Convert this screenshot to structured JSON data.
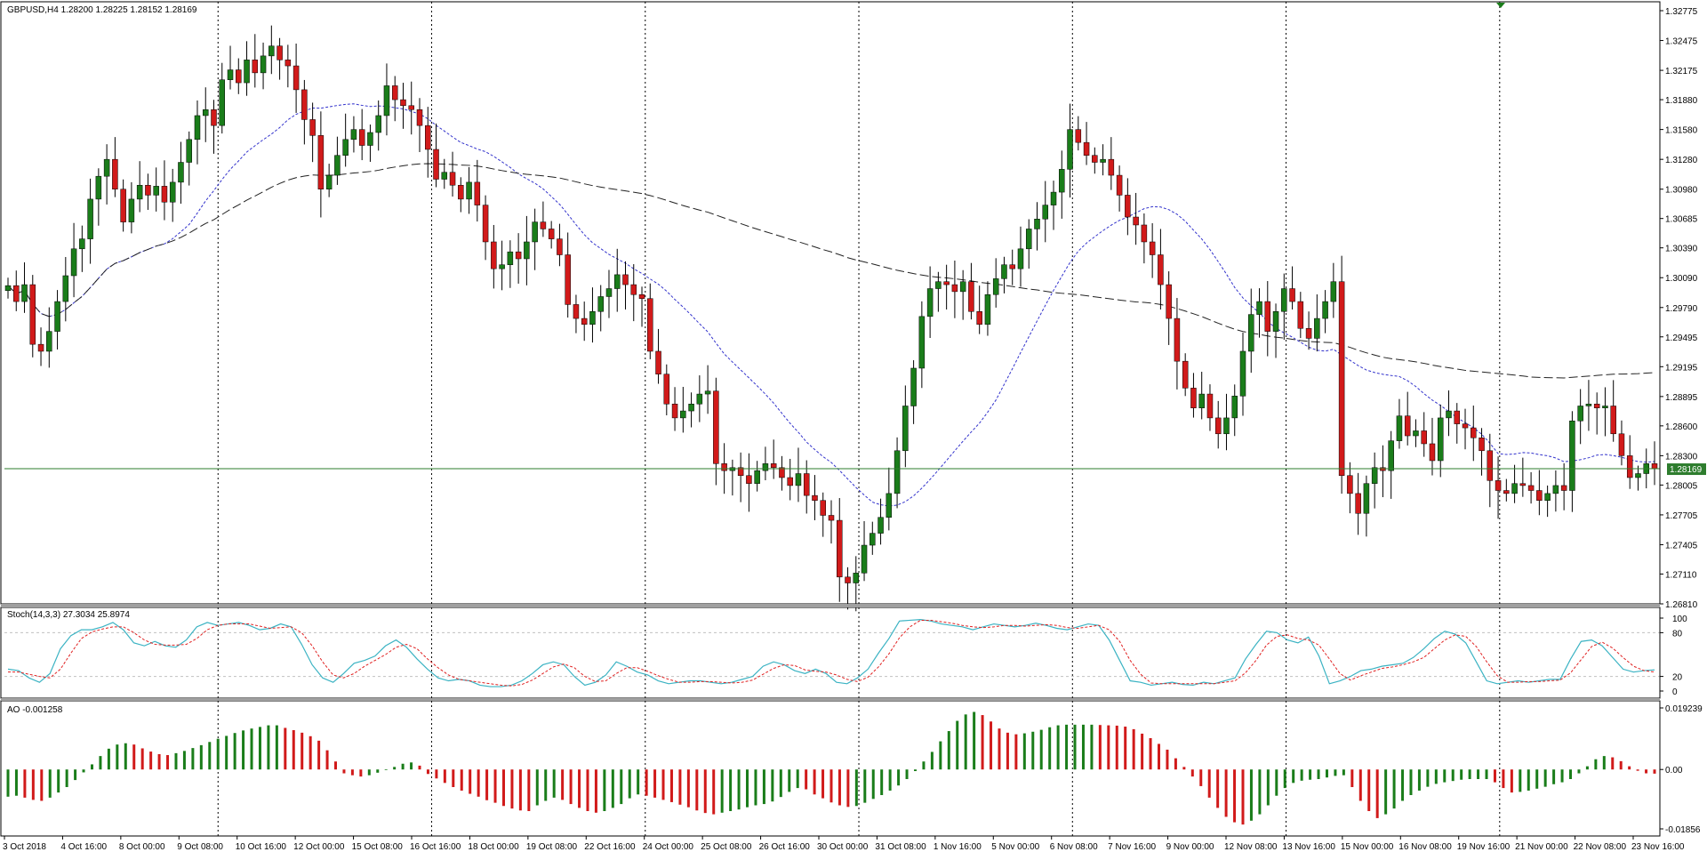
{
  "header": {
    "symbol_info": "GBPUSD,H4  1.28200 1.28225 1.28152 1.28169",
    "stoch_label": "Stoch(14,3,3) 27.3034 25.8974",
    "ao_label": "AO -0.001258",
    "current_price": "1.28169"
  },
  "colors": {
    "bull": "#1a7d1a",
    "bear": "#d11a1a",
    "ma_fast": "#3333cc",
    "ma_slow": "#222222",
    "price_line": "#2e7d2e",
    "stoch_main": "#3bb3c3",
    "stoch_signal": "#e02020"
  },
  "chart_data": [
    {
      "type": "candlestick",
      "ylim": [
        1.2681,
        1.32775
      ],
      "y_ticks": [
        "1.32775",
        "1.32475",
        "1.32175",
        "1.31880",
        "1.31580",
        "1.31280",
        "1.30980",
        "1.30685",
        "1.30390",
        "1.30090",
        "1.29790",
        "1.29495",
        "1.29195",
        "1.28895",
        "1.28600",
        "1.28300",
        "1.28005",
        "1.27705",
        "1.27405",
        "1.27110",
        "1.26810"
      ],
      "x_ticks": [
        "3 Oct 2018",
        "4 Oct 16:00",
        "8 Oct 00:00",
        "9 Oct 08:00",
        "10 Oct 16:00",
        "12 Oct 00:00",
        "15 Oct 08:00",
        "16 Oct 16:00",
        "18 Oct 00:00",
        "19 Oct 08:00",
        "22 Oct 16:00",
        "24 Oct 00:00",
        "25 Oct 08:00",
        "26 Oct 16:00",
        "30 Oct 00:00",
        "31 Oct 08:00",
        "1 Nov 16:00",
        "5 Nov 00:00",
        "6 Nov 08:00",
        "7 Nov 16:00",
        "9 Nov 00:00",
        "12 Nov 08:00",
        "13 Nov 16:00",
        "15 Nov 00:00",
        "16 Nov 08:00",
        "19 Nov 16:00",
        "21 Nov 00:00",
        "22 Nov 08:00",
        "23 Nov 16:00"
      ],
      "close_series": [
        1.3001,
        1.2985,
        1.3002,
        1.2942,
        1.2935,
        1.2955,
        1.2985,
        1.3011,
        1.3038,
        1.3048,
        1.3088,
        1.3111,
        1.3128,
        1.3098,
        1.3065,
        1.3088,
        1.3102,
        1.3092,
        1.3101,
        1.3085,
        1.3105,
        1.3125,
        1.3148,
        1.3172,
        1.3178,
        1.3162,
        1.3208,
        1.3218,
        1.3205,
        1.3228,
        1.3215,
        1.3232,
        1.3242,
        1.3228,
        1.3222,
        1.3198,
        1.3168,
        1.3152,
        1.3098,
        1.3112,
        1.3132,
        1.3148,
        1.3158,
        1.3142,
        1.3155,
        1.3172,
        1.3202,
        1.3188,
        1.3182,
        1.3178,
        1.3162,
        1.3138,
        1.3108,
        1.3115,
        1.3102,
        1.3088,
        1.3105,
        1.3082,
        1.3045,
        1.3018,
        1.3022,
        1.3035,
        1.3028,
        1.3045,
        1.3065,
        1.3058,
        1.3048,
        1.3032,
        1.2982,
        1.2968,
        1.2962,
        1.2975,
        1.299,
        1.2998,
        1.3012,
        1.3002,
        1.2992,
        1.2988,
        1.2935,
        1.2912,
        1.2882,
        1.2868,
        1.2875,
        1.2882,
        1.2892,
        1.2895,
        1.2822,
        1.2815,
        1.2818,
        1.281,
        1.2802,
        1.2815,
        1.2822,
        1.2818,
        1.2808,
        1.28,
        1.2812,
        1.279,
        1.2785,
        1.277,
        1.2765,
        1.2708,
        1.2702,
        1.2712,
        1.274,
        1.2752,
        1.2768,
        1.2792,
        1.2835,
        1.288,
        1.2918,
        1.297,
        1.2998,
        1.3005,
        1.3002,
        1.2995,
        1.3005,
        1.2975,
        1.2962,
        1.2992,
        1.3008,
        1.3022,
        1.3018,
        1.3038,
        1.3058,
        1.3068,
        1.3082,
        1.3095,
        1.3118,
        1.3158,
        1.3145,
        1.3132,
        1.3125,
        1.3128,
        1.3112,
        1.3092,
        1.307,
        1.3062,
        1.3045,
        1.3032,
        1.3002,
        1.2968,
        1.2925,
        1.2898,
        1.2878,
        1.2892,
        1.2868,
        1.2852,
        1.2868,
        1.289,
        1.2935,
        1.2972,
        1.2985,
        1.2955,
        1.2975,
        1.2998,
        1.2985,
        1.2958,
        1.2948,
        1.2968,
        1.2985,
        1.3005,
        1.281,
        1.2792,
        1.2772,
        1.2802,
        1.2818,
        1.2815,
        1.2845,
        1.287,
        1.285,
        1.2855,
        1.2842,
        1.2825,
        1.2868,
        1.2875,
        1.2862,
        1.2858,
        1.2848,
        1.2835,
        1.2805,
        1.2795,
        1.2792,
        1.2802,
        1.28,
        1.2795,
        1.2785,
        1.2792,
        1.28,
        1.2795,
        1.2865,
        1.288,
        1.2882,
        1.2878,
        1.288,
        1.2852,
        1.283,
        1.2808,
        1.2812,
        1.2822,
        1.2817
      ]
    },
    {
      "type": "line",
      "title": "Stoch(14,3,3)",
      "levels": [
        80,
        20
      ],
      "y_ticks": [
        "100",
        "80",
        "20",
        "0"
      ],
      "series": [
        {
          "name": "main",
          "values": [
            30,
            28,
            18,
            12,
            24,
            58,
            76,
            84,
            84,
            88,
            94,
            84,
            66,
            62,
            68,
            62,
            60,
            70,
            88,
            94,
            90,
            92,
            94,
            90,
            84,
            86,
            92,
            88,
            64,
            36,
            18,
            12,
            24,
            38,
            42,
            48,
            62,
            70,
            60,
            44,
            30,
            18,
            14,
            16,
            14,
            8,
            6,
            6,
            8,
            14,
            24,
            36,
            40,
            36,
            20,
            8,
            12,
            22,
            40,
            34,
            26,
            22,
            14,
            10,
            12,
            14,
            14,
            12,
            10,
            12,
            16,
            20,
            34,
            40,
            36,
            28,
            24,
            30,
            24,
            12,
            10,
            18,
            30,
            52,
            72,
            96,
            97,
            98,
            96,
            92,
            90,
            88,
            84,
            88,
            92,
            90,
            88,
            90,
            93,
            90,
            86,
            84,
            88,
            92,
            90,
            70,
            42,
            14,
            12,
            8,
            10,
            12,
            9,
            8,
            12,
            10,
            14,
            18,
            44,
            64,
            82,
            80,
            70,
            66,
            74,
            48,
            10,
            14,
            20,
            28,
            30,
            34,
            36,
            38,
            46,
            58,
            72,
            82,
            78,
            66,
            40,
            14,
            10,
            12,
            14,
            12,
            14,
            16,
            16,
            44,
            68,
            70,
            62,
            46,
            30,
            26,
            28,
            29
          ]
        },
        {
          "name": "signal",
          "values": [
            26,
            26,
            23,
            20,
            18,
            30,
            52,
            72,
            81,
            85,
            88,
            88,
            80,
            70,
            64,
            63,
            63,
            64,
            72,
            84,
            90,
            92,
            92,
            92,
            89,
            86,
            87,
            88,
            80,
            62,
            40,
            22,
            18,
            24,
            34,
            42,
            50,
            60,
            64,
            58,
            44,
            32,
            22,
            16,
            14,
            12,
            10,
            8,
            7,
            9,
            15,
            24,
            33,
            37,
            32,
            20,
            13,
            14,
            24,
            32,
            32,
            27,
            21,
            16,
            12,
            12,
            13,
            13,
            12,
            11,
            12,
            15,
            23,
            31,
            36,
            35,
            29,
            27,
            26,
            22,
            16,
            13,
            19,
            33,
            51,
            73,
            88,
            97,
            97,
            95,
            93,
            90,
            88,
            87,
            88,
            90,
            90,
            89,
            90,
            91,
            90,
            87,
            86,
            88,
            90,
            84,
            68,
            42,
            23,
            11,
            10,
            10,
            10,
            10,
            10,
            10,
            12,
            14,
            25,
            42,
            63,
            75,
            77,
            72,
            70,
            63,
            44,
            24,
            15,
            21,
            26,
            31,
            33,
            36,
            40,
            46,
            58,
            70,
            77,
            75,
            61,
            40,
            21,
            12,
            12,
            13,
            13,
            14,
            15,
            25,
            43,
            61,
            67,
            59,
            46,
            34,
            28,
            26
          ]
        }
      ]
    },
    {
      "type": "bar",
      "title": "AO",
      "ylim": [
        -0.01856,
        0.019239
      ],
      "y_ticks": [
        "0.019239",
        "0.00",
        "-0.01856"
      ],
      "values": [
        -0.0085,
        -0.0082,
        -0.0088,
        -0.0095,
        -0.0098,
        -0.0088,
        -0.0072,
        -0.0055,
        -0.0033,
        -0.0009,
        0.0016,
        0.0042,
        0.0065,
        0.0078,
        0.0082,
        0.0078,
        0.0066,
        0.0056,
        0.0048,
        0.0045,
        0.0051,
        0.0058,
        0.0067,
        0.0076,
        0.0086,
        0.0096,
        0.0105,
        0.0114,
        0.0122,
        0.0128,
        0.0133,
        0.0138,
        0.0138,
        0.013,
        0.0123,
        0.0115,
        0.0104,
        0.009,
        0.006,
        0.0025,
        -0.0012,
        -0.0018,
        -0.0022,
        -0.0018,
        -0.001,
        -0.0002,
        0.0008,
        0.0018,
        0.0022,
        0.0012,
        -0.0014,
        -0.0028,
        -0.0042,
        -0.0055,
        -0.0066,
        -0.0076,
        -0.0085,
        -0.0096,
        -0.0104,
        -0.0114,
        -0.0122,
        -0.0128,
        -0.013,
        -0.0112,
        -0.0098,
        -0.0088,
        -0.0095,
        -0.0108,
        -0.012,
        -0.013,
        -0.0135,
        -0.013,
        -0.012,
        -0.0108,
        -0.009,
        -0.0078,
        -0.0082,
        -0.0088,
        -0.0095,
        -0.0102,
        -0.011,
        -0.0118,
        -0.0128,
        -0.0136,
        -0.014,
        -0.0135,
        -0.013,
        -0.0125,
        -0.0118,
        -0.0112,
        -0.0108,
        -0.01,
        -0.0086,
        -0.007,
        -0.0058,
        -0.0062,
        -0.0078,
        -0.009,
        -0.0103,
        -0.0112,
        -0.0117,
        -0.0114,
        -0.0104,
        -0.0092,
        -0.008,
        -0.0066,
        -0.005,
        -0.003,
        -0.0005,
        0.0025,
        0.0055,
        0.0088,
        0.012,
        0.0152,
        0.0172,
        0.018,
        0.017,
        0.015,
        0.0128,
        0.0115,
        0.011,
        0.0113,
        0.0118,
        0.0124,
        0.0132,
        0.0138,
        0.014,
        0.014,
        0.014,
        0.014,
        0.0139,
        0.0138,
        0.0137,
        0.0134,
        0.0126,
        0.0112,
        0.0098,
        0.008,
        0.0062,
        0.0035,
        0.0008,
        -0.0022,
        -0.0052,
        -0.0088,
        -0.012,
        -0.0148,
        -0.0165,
        -0.0172,
        -0.016,
        -0.014,
        -0.0112,
        -0.0082,
        -0.0058,
        -0.0042,
        -0.0035,
        -0.0032,
        -0.003,
        -0.0025,
        -0.002,
        -0.0018,
        -0.0055,
        -0.0098,
        -0.013,
        -0.0152,
        -0.014,
        -0.0122,
        -0.0098,
        -0.008,
        -0.0066,
        -0.0054,
        -0.0045,
        -0.004,
        -0.0036,
        -0.0032,
        -0.003,
        -0.003,
        -0.003,
        -0.004,
        -0.0058,
        -0.0072,
        -0.007,
        -0.0066,
        -0.006,
        -0.0054,
        -0.0046,
        -0.004,
        -0.003,
        -0.0012,
        0.001,
        0.0032,
        0.0042,
        0.0038,
        0.0026,
        0.001,
        -0.0004,
        -0.0012,
        -0.0013
      ]
    }
  ]
}
